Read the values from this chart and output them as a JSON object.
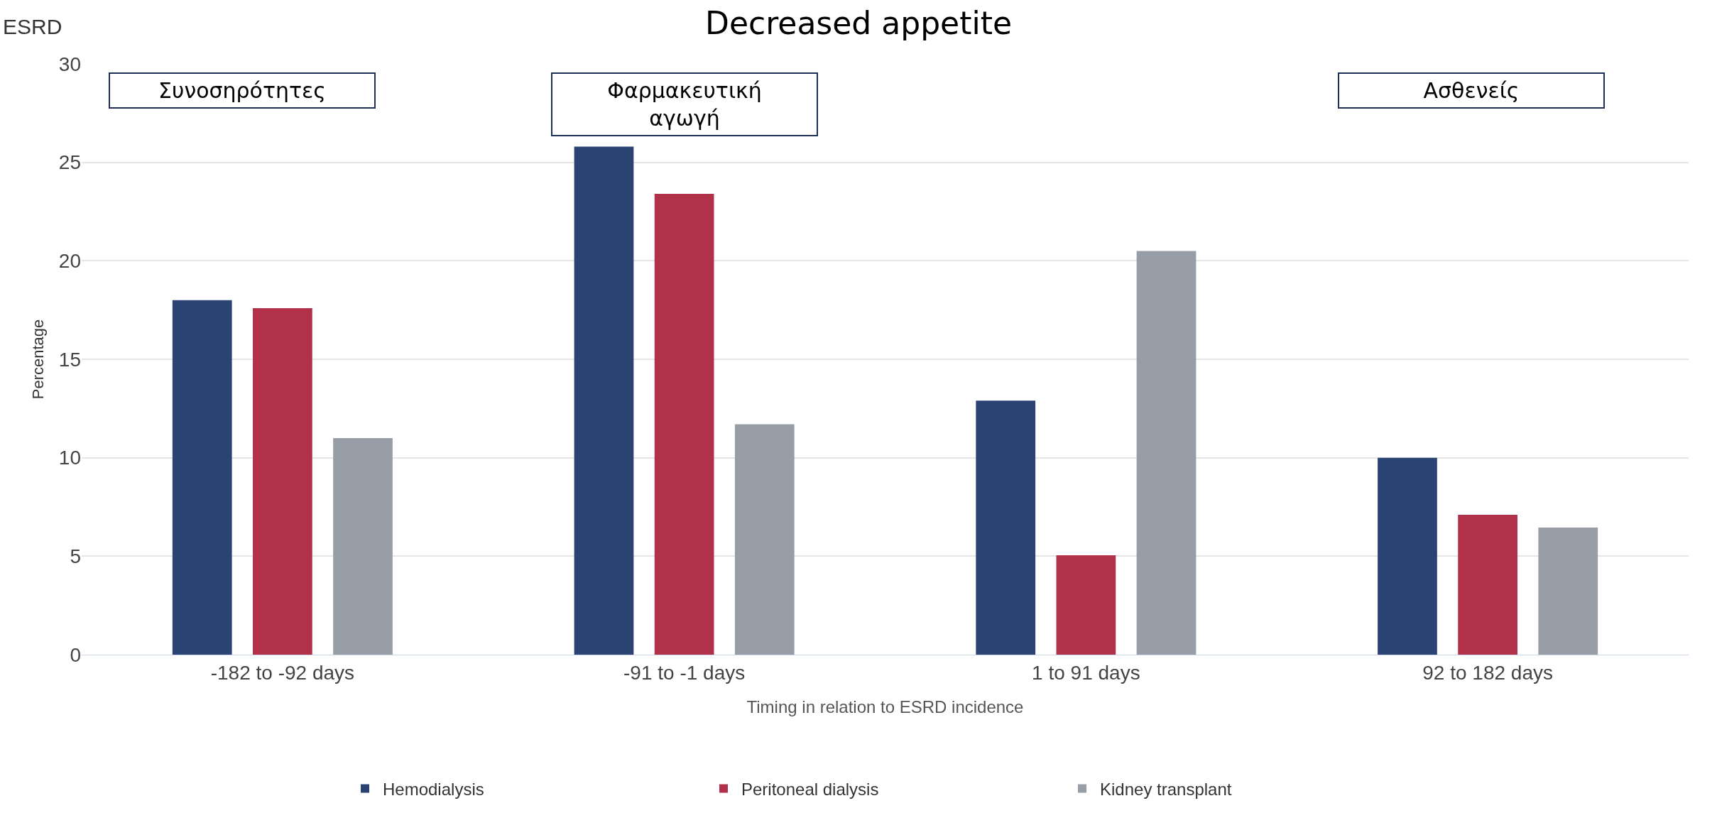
{
  "chart_data": {
    "type": "bar",
    "title": "Decreased appetite",
    "xlabel": "Timing in relation to ESRD incidence",
    "ylabel": "Percentage",
    "categories": [
      "-182 to -92 days",
      "-91 to -1 days",
      "1 to 91 days",
      "92 to 182 days"
    ],
    "series": [
      {
        "name": "Hemodialysis",
        "color": "#2b4372",
        "values": [
          18,
          25.8,
          12.9,
          10
        ]
      },
      {
        "name": "Peritoneal dialysis",
        "color": "#b1314a",
        "values": [
          17.6,
          23.4,
          5.05,
          7.1
        ]
      },
      {
        "name": "Kidney transplant",
        "color": "#979ea7",
        "values": [
          11,
          11.7,
          20.5,
          6.45
        ]
      }
    ],
    "ylim": [
      0,
      30
    ],
    "yticks": [
      0,
      5,
      10,
      15,
      20,
      25,
      30
    ],
    "grid": "y",
    "legend": "bottom",
    "annotations": [
      "ESRD",
      "Συνοσηρότητες",
      "Φαρμακευτική\nαγωγή",
      "Ασθενείς"
    ]
  }
}
